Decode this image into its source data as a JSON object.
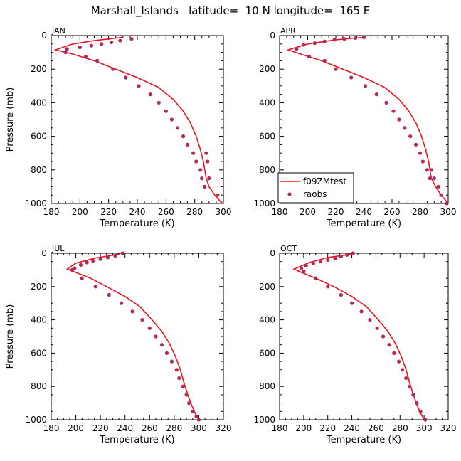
{
  "title": "Marshall_Islands   latitude=  10 N longitude=  165 E",
  "colors": {
    "model_line": "#e8161f",
    "obs_marker": "#b5285a",
    "axis": "#000000"
  },
  "legend": {
    "line_label": "f09ZMtest",
    "marker_label": "raobs"
  },
  "chart_data": [
    {
      "type": "line",
      "panel": "JAN",
      "xlabel": "Temperature (K)",
      "ylabel": "Pressure (mb)",
      "xlim": [
        180,
        300
      ],
      "ylim": [
        1000,
        0
      ],
      "xticks": [
        180,
        200,
        220,
        240,
        260,
        280,
        300
      ],
      "yticks": [
        0,
        200,
        400,
        600,
        800,
        1000
      ],
      "series": [
        {
          "name": "f09ZMtest",
          "x": [
            230,
            210,
            195,
            183,
            195,
            210,
            225,
            240,
            255,
            265,
            272,
            277,
            281,
            284,
            286,
            287,
            288,
            290,
            294,
            298,
            300
          ],
          "y": [
            10,
            30,
            50,
            85,
            110,
            150,
            200,
            250,
            310,
            380,
            450,
            520,
            600,
            680,
            750,
            800,
            850,
            900,
            950,
            990,
            1000
          ]
        },
        {
          "name": "raobs",
          "x": [
            236,
            228,
            222,
            215,
            208,
            200,
            191,
            190,
            204,
            212,
            223,
            232,
            241,
            249,
            255,
            260,
            264,
            268,
            272,
            275,
            279,
            281,
            284,
            285,
            287,
            288,
            289,
            290,
            296
          ],
          "y": [
            20,
            30,
            40,
            50,
            60,
            70,
            80,
            100,
            125,
            150,
            200,
            250,
            300,
            350,
            400,
            450,
            500,
            550,
            600,
            650,
            700,
            750,
            800,
            850,
            900,
            700,
            750,
            850,
            950
          ]
        }
      ]
    },
    {
      "type": "line",
      "panel": "APR",
      "xlabel": "Temperature (K)",
      "ylabel": "",
      "xlim": [
        180,
        300
      ],
      "ylim": [
        1000,
        0
      ],
      "xticks": [
        180,
        200,
        220,
        240,
        260,
        280,
        300
      ],
      "yticks": [
        0,
        200,
        400,
        600,
        800,
        1000
      ],
      "series": [
        {
          "name": "f09ZMtest",
          "x": [
            240,
            220,
            200,
            186,
            195,
            210,
            225,
            240,
            255,
            265,
            272,
            277,
            281,
            284,
            286,
            287,
            288,
            291,
            295,
            299,
            300
          ],
          "y": [
            10,
            25,
            50,
            85,
            110,
            150,
            200,
            250,
            310,
            380,
            450,
            520,
            600,
            680,
            750,
            800,
            850,
            900,
            950,
            990,
            1000
          ]
        },
        {
          "name": "raobs",
          "x": [
            240,
            234,
            226,
            219,
            212,
            205,
            197,
            192,
            201,
            212,
            220,
            231,
            241,
            249,
            256,
            261,
            265,
            269,
            273,
            277,
            280,
            282,
            285,
            287,
            288,
            290,
            293,
            295,
            299
          ],
          "y": [
            10,
            15,
            20,
            25,
            35,
            45,
            55,
            80,
            125,
            150,
            200,
            250,
            300,
            350,
            400,
            450,
            500,
            550,
            600,
            650,
            700,
            750,
            800,
            850,
            800,
            850,
            900,
            950,
            1000
          ]
        }
      ]
    },
    {
      "type": "line",
      "panel": "JUL",
      "xlabel": "Temperature (K)",
      "ylabel": "Pressure (mb)",
      "xlim": [
        180,
        320
      ],
      "ylim": [
        1000,
        0
      ],
      "xticks": [
        180,
        200,
        220,
        240,
        260,
        280,
        300,
        320
      ],
      "yticks": [
        0,
        200,
        400,
        600,
        800,
        1000
      ],
      "series": [
        {
          "name": "f09ZMtest",
          "x": [
            235,
            215,
            200,
            193,
            200,
            212,
            225,
            240,
            252,
            262,
            270,
            276,
            281,
            285,
            288,
            291,
            294,
            297,
            300
          ],
          "y": [
            5,
            30,
            60,
            95,
            115,
            150,
            200,
            260,
            320,
            400,
            470,
            540,
            620,
            700,
            780,
            850,
            910,
            960,
            1000
          ]
        },
        {
          "name": "raobs",
          "x": [
            238,
            232,
            226,
            220,
            214,
            209,
            204,
            199,
            197,
            205,
            216,
            227,
            237,
            246,
            254,
            260,
            265,
            270,
            274,
            278,
            282,
            284,
            287,
            290,
            292,
            295,
            298,
            300
          ],
          "y": [
            0,
            15,
            25,
            35,
            45,
            55,
            70,
            90,
            100,
            150,
            200,
            250,
            300,
            350,
            400,
            450,
            500,
            550,
            600,
            650,
            700,
            750,
            800,
            850,
            900,
            950,
            980,
            1000
          ]
        }
      ]
    },
    {
      "type": "line",
      "panel": "OCT",
      "xlabel": "Temperature (K)",
      "ylabel": "",
      "xlim": [
        180,
        320
      ],
      "ylim": [
        1000,
        0
      ],
      "xticks": [
        180,
        200,
        220,
        240,
        260,
        280,
        300,
        320
      ],
      "yticks": [
        0,
        200,
        400,
        600,
        800,
        1000
      ],
      "series": [
        {
          "name": "f09ZMtest",
          "x": [
            240,
            220,
            205,
            192,
            198,
            210,
            225,
            240,
            252,
            262,
            270,
            276,
            281,
            285,
            288,
            291,
            294,
            297,
            300
          ],
          "y": [
            5,
            25,
            55,
            95,
            115,
            150,
            200,
            260,
            320,
            400,
            470,
            540,
            620,
            700,
            780,
            850,
            910,
            960,
            1000
          ]
        },
        {
          "name": "raobs",
          "x": [
            241,
            236,
            231,
            226,
            220,
            214,
            208,
            202,
            198,
            200,
            210,
            220,
            231,
            240,
            248,
            255,
            261,
            266,
            271,
            275,
            279,
            282,
            285,
            288,
            291,
            294,
            297,
            301
          ],
          "y": [
            0,
            10,
            20,
            30,
            40,
            50,
            60,
            75,
            90,
            110,
            150,
            200,
            250,
            300,
            350,
            400,
            450,
            500,
            550,
            600,
            650,
            700,
            750,
            800,
            850,
            900,
            950,
            1000
          ]
        }
      ]
    }
  ]
}
